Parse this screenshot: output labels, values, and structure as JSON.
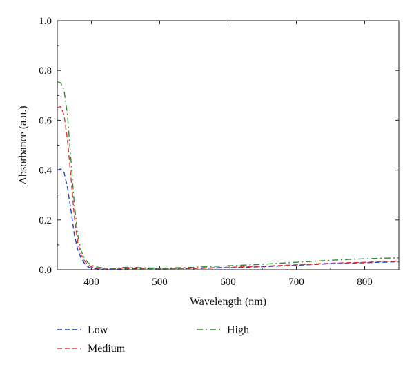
{
  "chart_data": {
    "type": "line",
    "title": "",
    "xlabel": "Wavelength (nm)",
    "ylabel": "Absorbance (a.u.)",
    "xlim": [
      350,
      850
    ],
    "ylim": [
      0,
      1.0
    ],
    "x_ticks": [
      "400",
      "500",
      "600",
      "700",
      "800"
    ],
    "y_ticks": [
      "0.0",
      "0.2",
      "0.4",
      "0.6",
      "0.8",
      "1.0"
    ],
    "grid": false,
    "legend_position": "bottom",
    "series": [
      {
        "name": "Low",
        "color": "#1f3fd0",
        "dash": "dashed",
        "x": [
          350,
          355,
          360,
          365,
          370,
          375,
          380,
          385,
          390,
          395,
          400,
          410,
          420,
          430,
          450,
          500,
          550,
          600,
          650,
          700,
          750,
          800,
          850
        ],
        "y": [
          0.4,
          0.405,
          0.39,
          0.33,
          0.24,
          0.14,
          0.08,
          0.045,
          0.025,
          0.012,
          0.006,
          0.003,
          0.002,
          0.002,
          0.004,
          0.004,
          0.005,
          0.008,
          0.012,
          0.018,
          0.024,
          0.028,
          0.032
        ]
      },
      {
        "name": "Medium",
        "color": "#e8342c",
        "dash": "dashed",
        "x": [
          350,
          355,
          360,
          365,
          370,
          375,
          380,
          385,
          390,
          395,
          400,
          410,
          420,
          430,
          450,
          500,
          550,
          600,
          650,
          700,
          750,
          800,
          850
        ],
        "y": [
          0.65,
          0.655,
          0.62,
          0.52,
          0.37,
          0.21,
          0.11,
          0.06,
          0.035,
          0.02,
          0.012,
          0.006,
          0.003,
          0.003,
          0.008,
          0.004,
          0.006,
          0.01,
          0.014,
          0.02,
          0.026,
          0.03,
          0.035
        ]
      },
      {
        "name": "High",
        "color": "#2e8b2e",
        "dash": "dashdot",
        "x": [
          350,
          355,
          360,
          365,
          370,
          375,
          380,
          385,
          390,
          395,
          400,
          410,
          420,
          430,
          450,
          500,
          550,
          600,
          650,
          700,
          750,
          800,
          850
        ],
        "y": [
          0.755,
          0.75,
          0.72,
          0.62,
          0.44,
          0.26,
          0.14,
          0.075,
          0.045,
          0.028,
          0.018,
          0.01,
          0.006,
          0.005,
          0.01,
          0.006,
          0.01,
          0.016,
          0.022,
          0.03,
          0.038,
          0.044,
          0.048
        ]
      }
    ]
  }
}
